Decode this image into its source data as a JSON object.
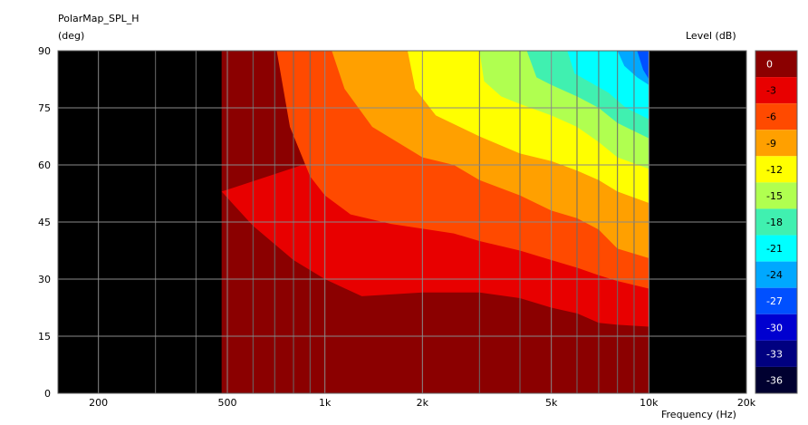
{
  "window": {
    "title": "PolarMap_SPL_H"
  },
  "chart_data": {
    "type": "heatmap",
    "title": "PolarMap_SPL_H",
    "ylabel": "(deg)",
    "xlabel": "Frequency  (Hz)",
    "colorbar_label": "Level  (dB)",
    "x_scale": "log",
    "xlim": [
      150,
      20000
    ],
    "ylim": [
      0,
      90
    ],
    "x_ticks": [
      200,
      500,
      1000,
      2000,
      5000,
      10000,
      20000
    ],
    "x_tick_labels": [
      "200",
      "500",
      "1k",
      "2k",
      "5k",
      "10k",
      "20k"
    ],
    "y_ticks": [
      0,
      15,
      30,
      45,
      60,
      75,
      90
    ],
    "y_tick_labels": [
      "0",
      "15",
      "30",
      "45",
      "60",
      "75",
      "90"
    ],
    "data_xrange": [
      480,
      10000
    ],
    "background": "#000000",
    "grid": true,
    "levels": [
      0,
      -3,
      -6,
      -9,
      -12,
      -15,
      -18,
      -21,
      -24,
      -27,
      -30,
      -33,
      -36
    ],
    "level_labels": [
      "0",
      "-3",
      "-6",
      "-9",
      "-12",
      "-15",
      "-18",
      "-21",
      "-24",
      "-27",
      "-30",
      "-33",
      "-36"
    ],
    "level_colors": [
      "#8b0000",
      "#e80000",
      "#ff4a00",
      "#ffa000",
      "#ffff00",
      "#b0ff50",
      "#40f0b0",
      "#00ffff",
      "#00a8ff",
      "#0050ff",
      "#0000d0",
      "#000080",
      "#000030"
    ],
    "contours": [
      {
        "level": -3,
        "points": [
          [
            480,
            53
          ],
          [
            600,
            44
          ],
          [
            800,
            35
          ],
          [
            1000,
            30
          ],
          [
            1300,
            25.5
          ],
          [
            2000,
            26.5
          ],
          [
            3000,
            26.5
          ],
          [
            4000,
            25
          ],
          [
            5000,
            22.5
          ],
          [
            6000,
            21
          ],
          [
            7000,
            18.5
          ],
          [
            8000,
            18
          ],
          [
            10000,
            17.5
          ]
        ]
      },
      {
        "level": -6,
        "points": [
          [
            710,
            90
          ],
          [
            780,
            70
          ],
          [
            900,
            57
          ],
          [
            1000,
            52
          ],
          [
            1200,
            47
          ],
          [
            1600,
            44.5
          ],
          [
            2500,
            42
          ],
          [
            3000,
            40
          ],
          [
            4000,
            37.5
          ],
          [
            5000,
            35
          ],
          [
            6000,
            33
          ],
          [
            7000,
            31
          ],
          [
            8000,
            29.5
          ],
          [
            10000,
            27.5
          ]
        ]
      },
      {
        "level": -9,
        "points": [
          [
            1050,
            90
          ],
          [
            1150,
            80
          ],
          [
            1400,
            70
          ],
          [
            2000,
            62
          ],
          [
            2500,
            60
          ],
          [
            3000,
            56
          ],
          [
            4000,
            52
          ],
          [
            5000,
            48
          ],
          [
            6000,
            46
          ],
          [
            7000,
            43
          ],
          [
            8000,
            38
          ],
          [
            10000,
            35.5
          ]
        ]
      },
      {
        "level": -12,
        "points": [
          [
            1800,
            90
          ],
          [
            1900,
            80
          ],
          [
            2200,
            73
          ],
          [
            3000,
            67.5
          ],
          [
            4000,
            63
          ],
          [
            5000,
            61
          ],
          [
            6000,
            58.5
          ],
          [
            7000,
            56
          ],
          [
            8000,
            53
          ],
          [
            10000,
            50
          ]
        ]
      },
      {
        "level": -15,
        "points": [
          [
            3000,
            90
          ],
          [
            3100,
            82
          ],
          [
            3500,
            78
          ],
          [
            4000,
            76
          ],
          [
            5000,
            73
          ],
          [
            6000,
            70
          ],
          [
            7000,
            66
          ],
          [
            8000,
            62
          ],
          [
            10000,
            59
          ]
        ]
      },
      {
        "level": -18,
        "points": [
          [
            4200,
            90
          ],
          [
            4500,
            83
          ],
          [
            5000,
            81
          ],
          [
            6000,
            78
          ],
          [
            7000,
            75
          ],
          [
            8000,
            71
          ],
          [
            10000,
            67
          ]
        ]
      },
      {
        "level": -21,
        "points": [
          [
            5600,
            90
          ],
          [
            5900,
            84
          ],
          [
            6500,
            82
          ],
          [
            7500,
            79
          ],
          [
            8500,
            75
          ],
          [
            10000,
            72
          ]
        ]
      },
      {
        "level": -24,
        "points": [
          [
            8000,
            90
          ],
          [
            8400,
            86
          ],
          [
            9200,
            83
          ],
          [
            10000,
            81
          ]
        ]
      },
      {
        "level": -27,
        "points": [
          [
            9200,
            90
          ],
          [
            9600,
            85
          ],
          [
            10000,
            82.5
          ]
        ]
      }
    ]
  }
}
